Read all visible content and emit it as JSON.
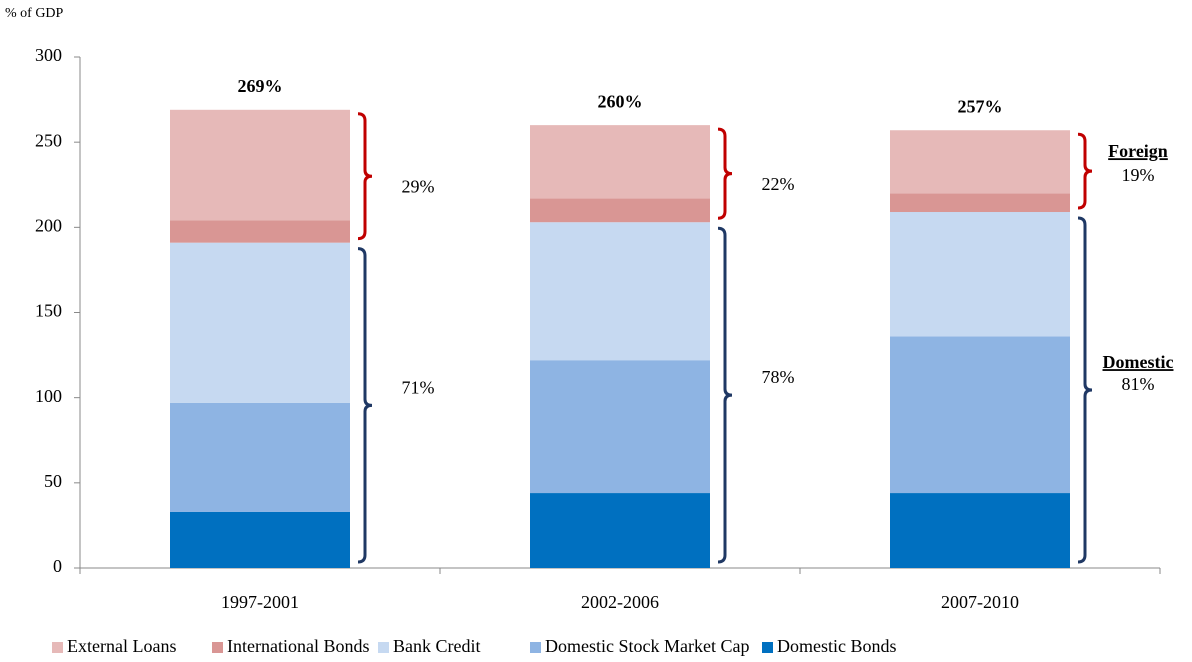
{
  "chart_data": {
    "type": "stacked_bar",
    "y_label": "% of GDP",
    "categories": [
      "1997-2001",
      "2002-2006",
      "2007-2010"
    ],
    "series": [
      {
        "name": "Domestic Bonds",
        "color": "#0070c0",
        "values": [
          33,
          44,
          44
        ]
      },
      {
        "name": "Domestic Stock Market Cap",
        "color": "#8eb4e3",
        "values": [
          64,
          78,
          92
        ]
      },
      {
        "name": "Bank Credit",
        "color": "#c6d9f1",
        "values": [
          94,
          81,
          73
        ]
      },
      {
        "name": "International Bonds",
        "color": "#d99694",
        "values": [
          13,
          14,
          11
        ]
      },
      {
        "name": "External Loans",
        "color": "#e6b9b8",
        "values": [
          65,
          43,
          37
        ]
      }
    ],
    "legend_order": [
      4,
      3,
      2,
      1,
      0
    ],
    "ylim": [
      0,
      300
    ],
    "yticks": [
      0,
      50,
      100,
      150,
      200,
      250,
      300
    ],
    "annotations": {
      "totals": [
        "269%",
        "260%",
        "257%"
      ],
      "foreign": [
        "29%",
        "22%",
        "19%"
      ],
      "domestic": [
        "71%",
        "78%",
        "81%"
      ],
      "foreign_label": "Foreign",
      "domestic_label": "Domestic",
      "foreign_color": "#c00000",
      "domestic_color": "#1f3864"
    }
  }
}
